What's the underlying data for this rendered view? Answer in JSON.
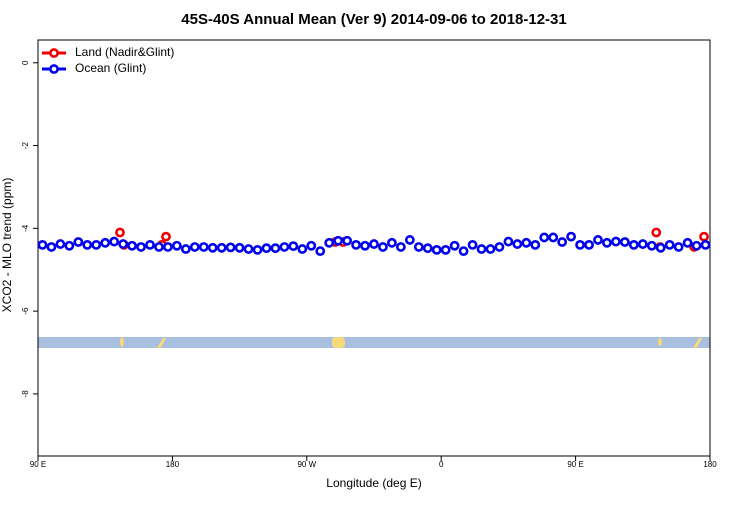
{
  "chart_data": {
    "type": "scatter",
    "title": "45S-40S Annual Mean (Ver 9)   2014-09-06 to 2018-12-31",
    "x_label": "Longitude (deg E)",
    "y_label": "XCO2 - MLO trend (ppm)",
    "xlim": [
      90,
      540
    ],
    "ylim": [
      -9.5,
      0.55
    ],
    "xticks": [
      {
        "value": 90,
        "label": "90 E"
      },
      {
        "value": 180,
        "label": "180"
      },
      {
        "value": 270,
        "label": "90 W"
      },
      {
        "value": 360,
        "label": "0"
      },
      {
        "value": 450,
        "label": "90 E"
      },
      {
        "value": 540,
        "label": "180"
      }
    ],
    "yticks": [
      0,
      -2,
      -4,
      -6,
      -8
    ],
    "legend": "top-left",
    "series": [
      {
        "name": "Land (Nadir&Glint)",
        "color": "#ee0000",
        "x": [
          144.9,
          147.6,
          173,
          175.7,
          289,
          294.3,
          504,
          506.6,
          529.4,
          536
        ],
        "values": [
          -4.1,
          -4.4,
          -4.4,
          -4.2,
          -4.33,
          -4.33,
          -4.1,
          -4.45,
          -4.45,
          -4.2
        ]
      },
      {
        "name": "Ocean (Glint)",
        "color": "#0000ee",
        "x": [
          93,
          99,
          105,
          111,
          117,
          123,
          129,
          135,
          141,
          147,
          153,
          159,
          165,
          171,
          177,
          183,
          189,
          195,
          201,
          207,
          213,
          219,
          225,
          231,
          237,
          243,
          249,
          255,
          261,
          267,
          273,
          279,
          285,
          291,
          297,
          303,
          309,
          315,
          321,
          327,
          333,
          339,
          345,
          351,
          357,
          363,
          369,
          375,
          381,
          387,
          393,
          399,
          405,
          411,
          417,
          423,
          429,
          435,
          441,
          447,
          453,
          459,
          465,
          471,
          477,
          483,
          489,
          495,
          501,
          507,
          513,
          519,
          525,
          531,
          537
        ],
        "values": [
          -4.4,
          -4.45,
          -4.38,
          -4.42,
          -4.33,
          -4.4,
          -4.4,
          -4.35,
          -4.32,
          -4.38,
          -4.42,
          -4.45,
          -4.4,
          -4.45,
          -4.45,
          -4.42,
          -4.5,
          -4.45,
          -4.45,
          -4.47,
          -4.47,
          -4.46,
          -4.47,
          -4.5,
          -4.52,
          -4.48,
          -4.48,
          -4.45,
          -4.43,
          -4.5,
          -4.42,
          -4.55,
          -4.35,
          -4.3,
          -4.3,
          -4.4,
          -4.42,
          -4.38,
          -4.45,
          -4.35,
          -4.45,
          -4.28,
          -4.45,
          -4.48,
          -4.52,
          -4.52,
          -4.42,
          -4.55,
          -4.4,
          -4.5,
          -4.5,
          -4.45,
          -4.32,
          -4.38,
          -4.35,
          -4.4,
          -4.22,
          -4.22,
          -4.33,
          -4.2,
          -4.4,
          -4.4,
          -4.28,
          -4.35,
          -4.32,
          -4.33,
          -4.4,
          -4.38,
          -4.42,
          -4.47,
          -4.4,
          -4.45,
          -4.35,
          -4.42,
          -4.4
        ]
      }
    ]
  }
}
